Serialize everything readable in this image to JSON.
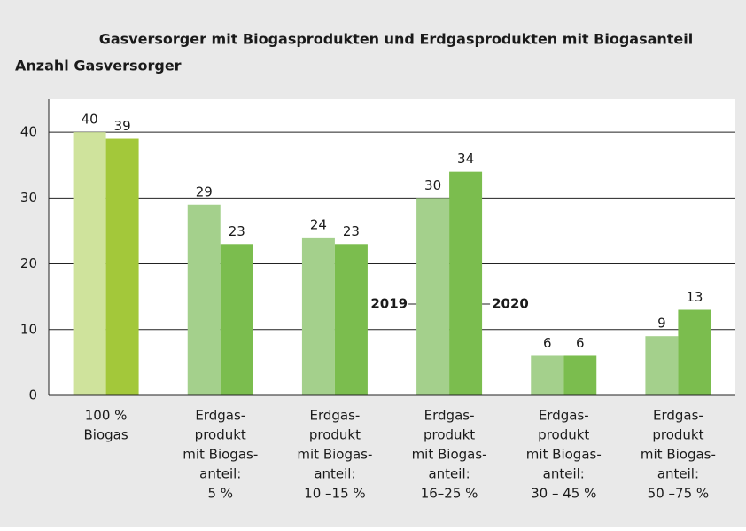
{
  "chart_data": {
    "type": "bar",
    "title": "Gasversorger mit Biogasprodukten und Erdgasprodukten mit Biogasanteil",
    "y_label": "Anzahl Gasversorger",
    "categories": [
      [
        "100 %",
        "Biogas"
      ],
      [
        "Erdgas-",
        "produkt",
        "mit Biogas-",
        "anteil:",
        "5 %"
      ],
      [
        "Erdgas-",
        "produkt",
        "mit Biogas-",
        "anteil:",
        "10 –15 %"
      ],
      [
        "Erdgas-",
        "produkt",
        "mit Biogas-",
        "anteil:",
        "16–25 %"
      ],
      [
        "Erdgas-",
        "produkt",
        "mit Biogas-",
        "anteil:",
        "30 – 45 %"
      ],
      [
        "Erdgas-",
        "produkt",
        "mit Biogas-",
        "anteil:",
        "50 –75 %"
      ]
    ],
    "series": [
      {
        "name": "2019",
        "colors": [
          "#cfe39c",
          "#a4d08c",
          "#a4d08c",
          "#a4d08c",
          "#a4d08c",
          "#a4d08c"
        ],
        "values": [
          40,
          29,
          24,
          30,
          6,
          9
        ]
      },
      {
        "name": "2020",
        "colors": [
          "#a3c83a",
          "#7bbd4e",
          "#7bbd4e",
          "#7bbd4e",
          "#7bbd4e",
          "#7bbd4e"
        ],
        "values": [
          39,
          23,
          23,
          34,
          6,
          13
        ]
      }
    ],
    "ylim": [
      0,
      45
    ],
    "yticks": [
      0,
      10,
      20,
      30,
      40
    ],
    "grid": true
  }
}
